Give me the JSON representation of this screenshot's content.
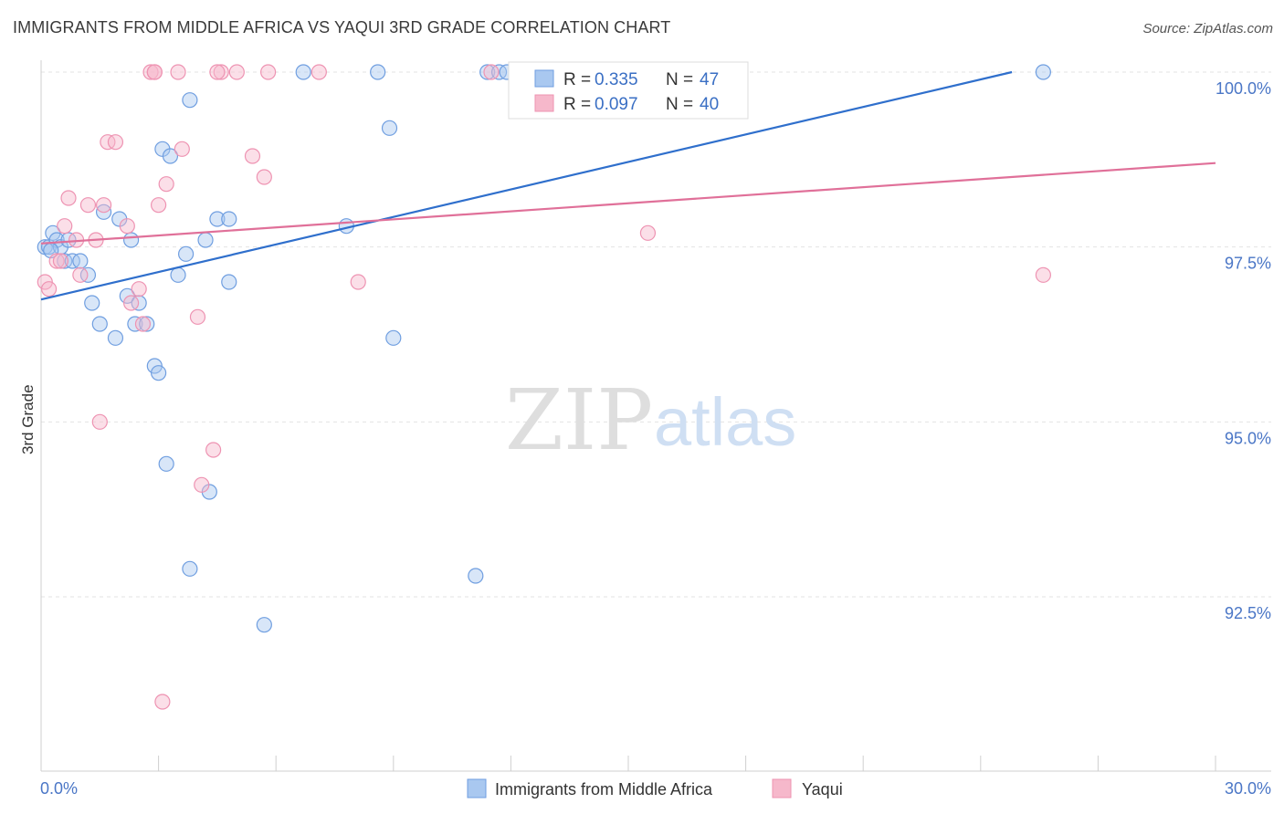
{
  "title": "IMMIGRANTS FROM MIDDLE AFRICA VS YAQUI 3RD GRADE CORRELATION CHART",
  "source": "Source: ZipAtlas.com",
  "watermark": {
    "zip": "ZIP",
    "atlas": "atlas"
  },
  "colors": {
    "blue_fill": "#a9c8f0",
    "blue_stroke": "#6f9ee0",
    "blue_line": "#2f6fcc",
    "pink_fill": "#f6b8cb",
    "pink_stroke": "#ee93b2",
    "pink_line": "#e07099",
    "tick_text": "#4a76c6",
    "grid": "#e3e3e3"
  },
  "chart_data": {
    "type": "scatter",
    "xlabel": "",
    "ylabel": "3rd Grade",
    "xlim": [
      0.0,
      30.0
    ],
    "ylim": [
      90.0,
      100.2
    ],
    "x_tick_labels": [
      "0.0%",
      "30.0%"
    ],
    "y_ticks": [
      92.5,
      95.0,
      97.5,
      100.0
    ],
    "y_tick_labels": [
      "92.5%",
      "95.0%",
      "97.5%",
      "100.0%"
    ],
    "grid": true,
    "legend_position": "top-center",
    "stats": [
      {
        "r_label": "R =",
        "r": "0.335",
        "n_label": "N =",
        "n": "47"
      },
      {
        "r_label": "R =",
        "r": "0.097",
        "n_label": "N =",
        "n": "40"
      }
    ],
    "series": [
      {
        "name": "Immigrants from Middle Africa",
        "color": "blue",
        "trend": {
          "x": [
            0.0,
            24.8
          ],
          "y": [
            96.75,
            100.0
          ]
        },
        "points": [
          [
            0.1,
            97.5
          ],
          [
            0.2,
            97.5
          ],
          [
            0.3,
            97.7
          ],
          [
            0.4,
            97.6
          ],
          [
            0.5,
            97.5
          ],
          [
            0.6,
            97.3
          ],
          [
            0.7,
            97.6
          ],
          [
            0.8,
            97.3
          ],
          [
            1.0,
            97.3
          ],
          [
            1.2,
            97.1
          ],
          [
            1.3,
            96.7
          ],
          [
            1.6,
            98.0
          ],
          [
            1.5,
            96.4
          ],
          [
            1.9,
            96.2
          ],
          [
            2.0,
            97.9
          ],
          [
            2.2,
            96.8
          ],
          [
            2.4,
            96.4
          ],
          [
            2.3,
            97.6
          ],
          [
            2.5,
            96.7
          ],
          [
            2.7,
            96.4
          ],
          [
            2.9,
            95.8
          ],
          [
            3.0,
            95.7
          ],
          [
            3.1,
            98.9
          ],
          [
            3.3,
            98.8
          ],
          [
            3.5,
            97.1
          ],
          [
            3.7,
            97.4
          ],
          [
            3.8,
            99.6
          ],
          [
            3.2,
            94.4
          ],
          [
            4.2,
            97.6
          ],
          [
            4.3,
            94.0
          ],
          [
            4.5,
            97.9
          ],
          [
            4.8,
            97.0
          ],
          [
            4.8,
            97.9
          ],
          [
            3.8,
            92.9
          ],
          [
            5.7,
            92.1
          ],
          [
            6.7,
            100.0
          ],
          [
            7.8,
            97.8
          ],
          [
            8.6,
            100.0
          ],
          [
            8.9,
            99.2
          ],
          [
            9.0,
            96.2
          ],
          [
            11.1,
            92.8
          ],
          [
            11.4,
            100.0
          ],
          [
            11.7,
            100.0
          ],
          [
            11.9,
            100.0
          ],
          [
            12.2,
            100.0
          ],
          [
            25.6,
            100.0
          ],
          [
            0.25,
            97.45
          ]
        ]
      },
      {
        "name": "Yaqui",
        "color": "pink",
        "trend": {
          "x": [
            0.0,
            30.0
          ],
          "y": [
            97.55,
            98.7
          ]
        },
        "points": [
          [
            0.1,
            97.0
          ],
          [
            0.2,
            96.9
          ],
          [
            0.4,
            97.3
          ],
          [
            0.6,
            97.8
          ],
          [
            0.7,
            98.2
          ],
          [
            0.9,
            97.6
          ],
          [
            1.0,
            97.1
          ],
          [
            1.2,
            98.1
          ],
          [
            1.4,
            97.6
          ],
          [
            1.5,
            95.0
          ],
          [
            1.7,
            99.0
          ],
          [
            1.9,
            99.0
          ],
          [
            2.2,
            97.8
          ],
          [
            2.3,
            96.7
          ],
          [
            2.5,
            96.9
          ],
          [
            2.6,
            96.4
          ],
          [
            2.8,
            100.0
          ],
          [
            2.9,
            100.0
          ],
          [
            3.0,
            98.1
          ],
          [
            3.2,
            98.4
          ],
          [
            3.5,
            100.0
          ],
          [
            3.6,
            98.9
          ],
          [
            4.0,
            96.5
          ],
          [
            4.1,
            94.1
          ],
          [
            4.4,
            94.6
          ],
          [
            4.6,
            100.0
          ],
          [
            5.0,
            100.0
          ],
          [
            5.4,
            98.8
          ],
          [
            5.7,
            98.5
          ],
          [
            5.8,
            100.0
          ],
          [
            7.1,
            100.0
          ],
          [
            8.1,
            97.0
          ],
          [
            3.1,
            91.0
          ],
          [
            11.5,
            100.0
          ],
          [
            15.5,
            97.7
          ],
          [
            25.6,
            97.1
          ],
          [
            2.9,
            100.0
          ],
          [
            1.6,
            98.1
          ],
          [
            0.5,
            97.3
          ],
          [
            4.5,
            100.0
          ]
        ]
      }
    ]
  }
}
